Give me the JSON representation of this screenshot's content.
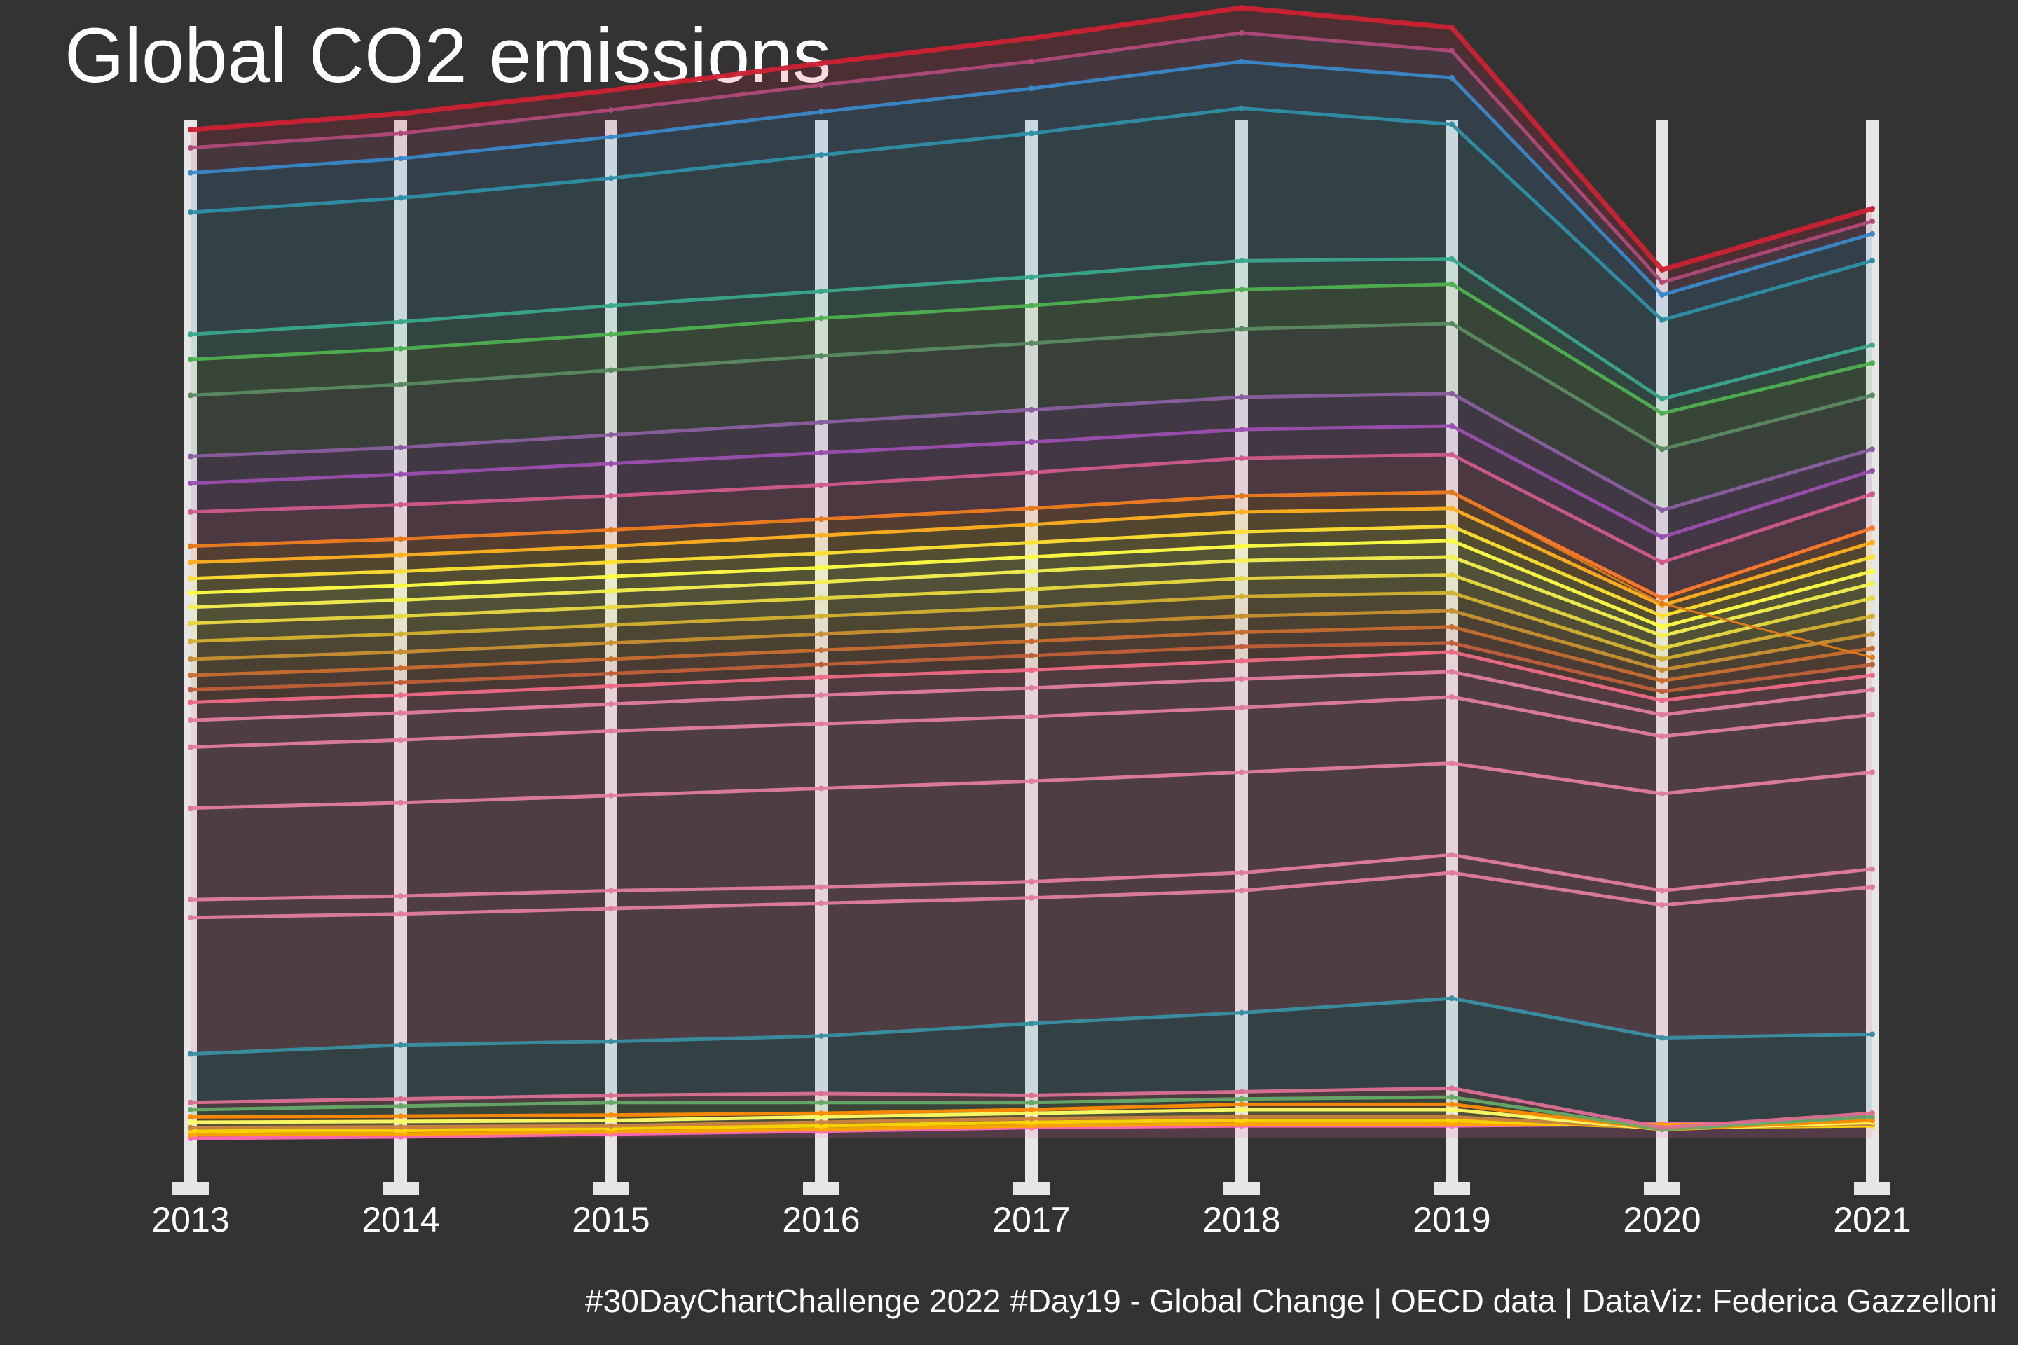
{
  "chart_data": {
    "type": "line",
    "title": "Global CO2 emissions",
    "caption": "#30DayChartChallenge 2022 #Day19 - Global Change | OECD data | DataViz: Federica Gazzelloni",
    "x": [
      "2013",
      "2014",
      "2015",
      "2016",
      "2017",
      "2018",
      "2019",
      "2020",
      "2021"
    ],
    "xlabel": "",
    "ylabel": "",
    "y_axis_shown": false,
    "grid": false,
    "legend": "none",
    "background": "#333333",
    "axis_bar_color": "#e6e6e6",
    "series": [
      {
        "values": [
          1000,
          1004,
          1012,
          1020,
          1030,
          1035,
          1035,
          1040,
          1040
        ],
        "color": "#ff69b4"
      },
      {
        "values": [
          1010,
          1012,
          1018,
          1025,
          1035,
          1040,
          1040,
          1038,
          1038
        ],
        "color": "#ffa500"
      },
      {
        "values": [
          1020,
          1022,
          1028,
          1035,
          1045,
          1050,
          1050,
          1030,
          1035
        ],
        "color": "#ffd700"
      },
      {
        "values": [
          1030,
          1032,
          1035,
          1045,
          1055,
          1060,
          1060,
          1028,
          1040
        ],
        "color": "#cd853f"
      },
      {
        "values": [
          1045,
          1047,
          1050,
          1060,
          1070,
          1080,
          1080,
          1025,
          1045
        ],
        "color": "#ffff66"
      },
      {
        "values": [
          1060,
          1062,
          1065,
          1070,
          1080,
          1095,
          1095,
          1025,
          1050
        ],
        "color": "#ff8c00"
      },
      {
        "values": [
          1080,
          1090,
          1100,
          1100,
          1100,
          1110,
          1115,
          1025,
          1060
        ],
        "color": "#66aa66"
      },
      {
        "values": [
          1100,
          1110,
          1120,
          1125,
          1120,
          1130,
          1140,
          1030,
          1070
        ],
        "color": "#db7093"
      },
      {
        "values": [
          1235,
          1260,
          1270,
          1285,
          1320,
          1350,
          1390,
          1280,
          1290
        ],
        "color": "#3a8fa3"
      },
      {
        "values": [
          1615,
          1625,
          1640,
          1655,
          1670,
          1690,
          1740,
          1650,
          1700
        ],
        "color": "#e07ca0"
      },
      {
        "values": [
          1665,
          1675,
          1690,
          1700,
          1715,
          1740,
          1790,
          1690,
          1750
        ],
        "color": "#e07ca0"
      },
      {
        "values": [
          1920,
          1935,
          1955,
          1975,
          1995,
          2020,
          2045,
          1960,
          2020
        ],
        "color": "#e07ca0"
      },
      {
        "values": [
          2090,
          2110,
          2135,
          2155,
          2175,
          2200,
          2230,
          2120,
          2180
        ],
        "color": "#e07ca0"
      },
      {
        "values": [
          2165,
          2185,
          2210,
          2235,
          2255,
          2280,
          2300,
          2180,
          2250
        ],
        "color": "#e07ca0"
      },
      {
        "values": [
          2215,
          2235,
          2260,
          2285,
          2305,
          2330,
          2355,
          2220,
          2290
        ],
        "color": "#ee6a84"
      },
      {
        "values": [
          2250,
          2270,
          2295,
          2320,
          2345,
          2370,
          2380,
          2245,
          2320
        ],
        "color": "#c0603a"
      },
      {
        "values": [
          2290,
          2310,
          2335,
          2360,
          2385,
          2410,
          2425,
          2275,
          2365
        ],
        "color": "#c86e30"
      },
      {
        "values": [
          2335,
          2355,
          2380,
          2405,
          2430,
          2455,
          2470,
          2305,
          2405
        ],
        "color": "#c89030"
      },
      {
        "values": [
          2385,
          2405,
          2430,
          2455,
          2480,
          2510,
          2520,
          2335,
          2455
        ],
        "color": "#d4b030"
      },
      {
        "values": [
          2435,
          2455,
          2480,
          2505,
          2530,
          2560,
          2570,
          2365,
          2505
        ],
        "color": "#e8d840"
      },
      {
        "values": [
          2480,
          2500,
          2525,
          2550,
          2580,
          2610,
          2620,
          2400,
          2545
        ],
        "color": "#f5f050"
      },
      {
        "values": [
          2520,
          2540,
          2565,
          2590,
          2620,
          2650,
          2665,
          2425,
          2580
        ],
        "color": "#ffff44"
      },
      {
        "values": [
          2560,
          2580,
          2605,
          2630,
          2660,
          2690,
          2705,
          2455,
          2620
        ],
        "color": "#ffe030"
      },
      {
        "values": [
          2605,
          2625,
          2650,
          2680,
          2710,
          2745,
          2755,
          2485,
          2660
        ],
        "color": "#ffb020"
      },
      {
        "values": [
          2650,
          2670,
          2695,
          2725,
          2755,
          2790,
          2800,
          2505,
          2700
        ],
        "color": "#ff7a2a"
      },
      {
        "values": [
          2745,
          2765,
          2790,
          2820,
          2855,
          2895,
          2905,
          2605,
          2795
        ],
        "color": "#d05a8a"
      },
      {
        "values": [
          2825,
          2850,
          2880,
          2910,
          2940,
          2975,
          2985,
          2675,
          2860
        ],
        "color": "#9c4fb0"
      },
      {
        "values": [
          2900,
          2925,
          2960,
          2995,
          3030,
          3065,
          3075,
          2750,
          2920
        ],
        "color": "#8a5ea0"
      },
      {
        "values": [
          3070,
          3100,
          3140,
          3180,
          3215,
          3255,
          3270,
          2920,
          3070
        ],
        "color": "#5a8a60"
      },
      {
        "values": [
          3170,
          3200,
          3240,
          3285,
          3320,
          3365,
          3380,
          3020,
          3160
        ],
        "color": "#4fb050"
      },
      {
        "values": [
          3240,
          3275,
          3320,
          3360,
          3400,
          3445,
          3450,
          3060,
          3210
        ],
        "color": "#3aa88a"
      },
      {
        "values": [
          3580,
          3620,
          3675,
          3740,
          3800,
          3870,
          3825,
          3280,
          3445
        ],
        "color": "#2f8fa8"
      },
      {
        "values": [
          3690,
          3730,
          3790,
          3860,
          3925,
          4000,
          3955,
          3350,
          3520
        ],
        "color": "#3a88c8"
      },
      {
        "values": [
          3760,
          3800,
          3865,
          3935,
          4000,
          4080,
          4030,
          3385,
          3555
        ],
        "color": "#b04a7a"
      },
      {
        "values": [
          3810,
          3855,
          3920,
          3995,
          4065,
          4150,
          4095,
          3420,
          3590
        ],
        "color": "#cc2233"
      }
    ],
    "annotations": [
      {
        "description": "orange line crossing",
        "values": [
          2650,
          2670,
          2695,
          2725,
          2755,
          2790,
          2800,
          2490,
          2340
        ],
        "color": "#e07b1a"
      }
    ]
  }
}
